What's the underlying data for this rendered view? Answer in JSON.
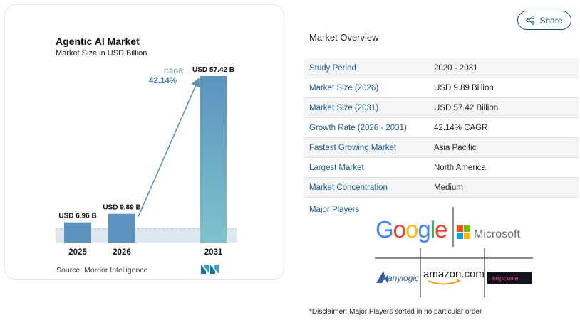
{
  "share": {
    "label": "Share"
  },
  "chart_data": {
    "type": "bar",
    "title": "Agentic AI Market",
    "subtitle": "Market Size in USD Billion",
    "categories": [
      "2025",
      "2026",
      "2031"
    ],
    "values": [
      6.96,
      9.89,
      57.42
    ],
    "value_labels": [
      "USD 6.96 B",
      "USD 9.89 B",
      "USD 57.42 B"
    ],
    "cagr_label": "CAGR",
    "cagr_value": "42.14%",
    "source": "Source: Mordor Intelligence",
    "colors": {
      "small_bar": "#5b93be",
      "tall_bar_top": "#5b93be",
      "tall_bar_bottom": "#7fc3cc",
      "cagr": "#3f7fb3",
      "band": "#dde7ef"
    }
  },
  "overview": {
    "title": "Market Overview",
    "rows": [
      {
        "label": "Study Period",
        "value": "2020 - 2031"
      },
      {
        "label": "Market Size (2026)",
        "value": "USD 9.89 Billion"
      },
      {
        "label": "Market Size (2031)",
        "value": "USD 57.42 Billion"
      },
      {
        "label": "Growth Rate (2026 - 2031)",
        "value": "42.14% CAGR"
      },
      {
        "label": "Fastest Growing Market",
        "value": "Asia Pacific"
      },
      {
        "label": "Largest Market",
        "value": "North America"
      },
      {
        "label": "Market Concentration",
        "value": "Medium"
      }
    ],
    "players_label": "Major Players",
    "players": [
      "Google",
      "Microsoft",
      "anylogic",
      "amazon.com",
      "ampcome"
    ],
    "disclaimer": "*Disclaimer: Major Players sorted in no particular order"
  }
}
